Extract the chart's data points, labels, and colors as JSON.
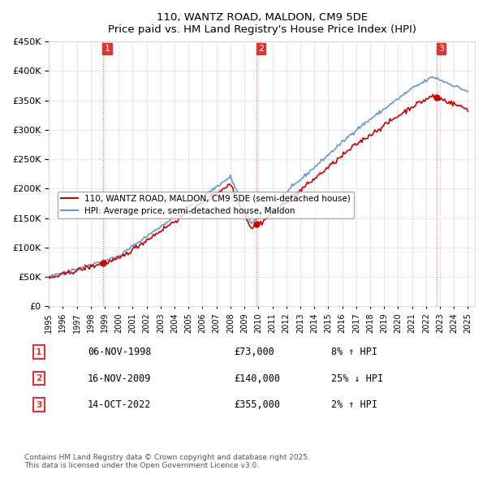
{
  "title": "110, WANTZ ROAD, MALDON, CM9 5DE",
  "subtitle": "Price paid vs. HM Land Registry's House Price Index (HPI)",
  "ylim": [
    0,
    450000
  ],
  "yticks": [
    0,
    50000,
    100000,
    150000,
    200000,
    250000,
    300000,
    350000,
    400000,
    450000
  ],
  "legend_line1": "110, WANTZ ROAD, MALDON, CM9 5DE (semi-detached house)",
  "legend_line2": "HPI: Average price, semi-detached house, Maldon",
  "sale_color": "#cc0000",
  "hpi_color": "#6699cc",
  "transaction_color": "#cc0000",
  "transactions": [
    {
      "num": 1,
      "date": "06-NOV-1998",
      "price": 73000,
      "hpi_pct": "8%",
      "direction": "↑"
    },
    {
      "num": 2,
      "date": "16-NOV-2009",
      "price": 140000,
      "hpi_pct": "25%",
      "direction": "↓"
    },
    {
      "num": 3,
      "date": "14-OCT-2022",
      "price": 355000,
      "hpi_pct": "2%",
      "direction": "↑"
    }
  ],
  "footer": "Contains HM Land Registry data © Crown copyright and database right 2025.\nThis data is licensed under the Open Government Licence v3.0.",
  "background_color": "#ffffff",
  "grid_color": "#dddddd",
  "vline_color": "#dd3333",
  "vline_style": "dotted"
}
